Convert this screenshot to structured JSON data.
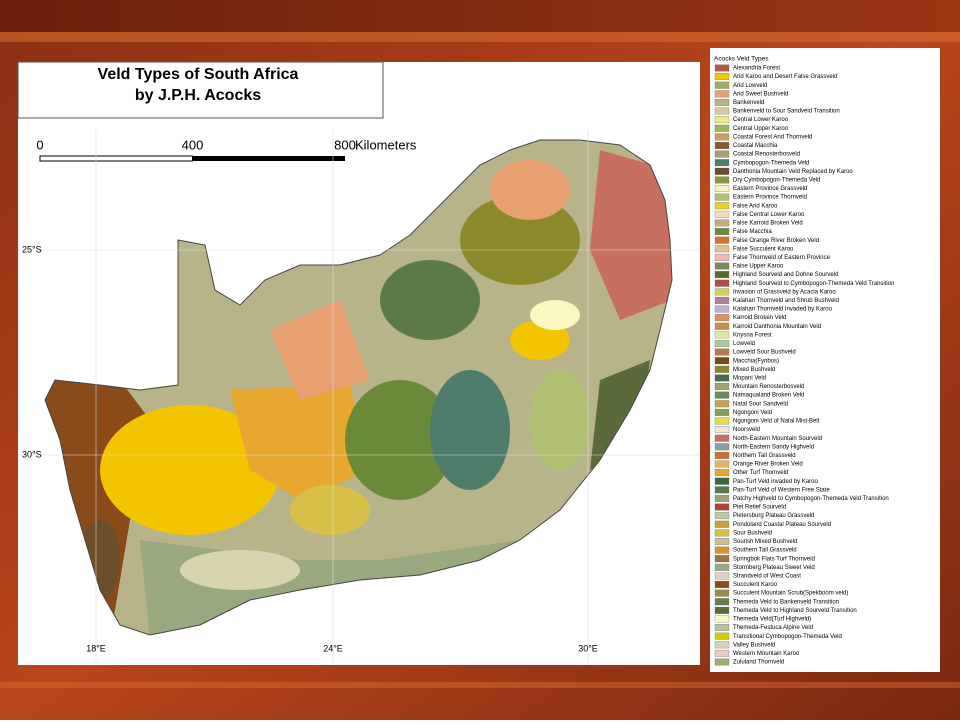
{
  "map": {
    "title": [
      "Veld Types of South Africa",
      "by J.P.H. Acocks"
    ],
    "scale": {
      "ticks": [
        0,
        400,
        800
      ],
      "unit": "Kilometers"
    },
    "latitudes": [
      "25°S",
      "30°S"
    ],
    "longitudes": [
      "18°E",
      "24°E",
      "30°E"
    ]
  },
  "legend": {
    "title": "Acocks Veld Types",
    "items": [
      {
        "label": "Alexandria Forest",
        "color": "#b5574e"
      },
      {
        "label": "Arid Karoo and Desert False Grassveld",
        "color": "#f2c500"
      },
      {
        "label": "Arid Lowveld",
        "color": "#a6a86a"
      },
      {
        "label": "Arid Sweet Bushveld",
        "color": "#e8a070"
      },
      {
        "label": "Bankenveld",
        "color": "#b8b48a"
      },
      {
        "label": "Bankenveld to Sour Sandveld Transition",
        "color": "#d9c9a0"
      },
      {
        "label": "Central Lower Karoo",
        "color": "#f0e68c"
      },
      {
        "label": "Central Upper Karoo",
        "color": "#9ab55a"
      },
      {
        "label": "Coastal Forest And Thornveld",
        "color": "#c8a060"
      },
      {
        "label": "Coastal Macchia",
        "color": "#8b5a2b"
      },
      {
        "label": "Coastal Renosterbosveld",
        "color": "#a8a070"
      },
      {
        "label": "Cymbopogon-Themeda Veld",
        "color": "#4e7c6a"
      },
      {
        "label": "Danthonia Mountain Veld Replaced by Karoo",
        "color": "#6b4e2a"
      },
      {
        "label": "Dry Cymbopogon-Themeda Veld",
        "color": "#8a9a3a"
      },
      {
        "label": "Eastern Province Grassveld",
        "color": "#f5f0c8"
      },
      {
        "label": "Eastern Province Thornveld",
        "color": "#b0c070"
      },
      {
        "label": "False Arid Karoo",
        "color": "#e8d030"
      },
      {
        "label": "False Central Lower Karoo",
        "color": "#f5dcc0"
      },
      {
        "label": "False Karroid Broken Veld",
        "color": "#c8a880"
      },
      {
        "label": "False Macchia",
        "color": "#6a8a3a"
      },
      {
        "label": "False Orange River Broken Veld",
        "color": "#d87030"
      },
      {
        "label": "False Succulent Karoo",
        "color": "#e0c090"
      },
      {
        "label": "False Thornveld of Eastern Province",
        "color": "#f0b8b0"
      },
      {
        "label": "False Upper Karoo",
        "color": "#7a8a50"
      },
      {
        "label": "Highland Sourveld and Dohne Sourveld",
        "color": "#5a6a2a"
      },
      {
        "label": "Highland Sourveld to Cymbopogon-Themeda Veld Transition",
        "color": "#b05040"
      },
      {
        "label": "Invasion of Grassveld by Acacia Karoo",
        "color": "#d4d060"
      },
      {
        "label": "Kalahari Thornveld and Shrub Bushveld",
        "color": "#b08098"
      },
      {
        "label": "Kalahari Thornveld Invaded by Karoo",
        "color": "#c0b0d0"
      },
      {
        "label": "Karroid Broken Veld",
        "color": "#e09060"
      },
      {
        "label": "Karroid Danthonia Mountain Veld",
        "color": "#c89050"
      },
      {
        "label": "Knysna Forest",
        "color": "#e0e8a0"
      },
      {
        "label": "Lowveld",
        "color": "#b0c8a0"
      },
      {
        "label": "Lowveld Sour Bushveld",
        "color": "#b87850"
      },
      {
        "label": "Macchia(Fynbos)",
        "color": "#7a4a1a"
      },
      {
        "label": "Mixed Bushveld",
        "color": "#8a8a2a"
      },
      {
        "label": "Mopani Veld",
        "color": "#4a6a4a"
      },
      {
        "label": "Mountain Renosterbosveld",
        "color": "#a0a070"
      },
      {
        "label": "Namaqualand Broken Veld",
        "color": "#6a8a5a"
      },
      {
        "label": "Natal Sour Sandveld",
        "color": "#c8a050"
      },
      {
        "label": "Ngongoni Veld",
        "color": "#8aa060"
      },
      {
        "label": "Ngongoni Veld of Natal Mist-Belt",
        "color": "#e8d848"
      },
      {
        "label": "Noorsveld",
        "color": "#f0e8d0"
      },
      {
        "label": "North-Eastern Mountain Sourveld",
        "color": "#c87060"
      },
      {
        "label": "North-Eastern Sandy Highveld",
        "color": "#8aa0a0"
      },
      {
        "label": "Northern Tall Grassveld",
        "color": "#d07030"
      },
      {
        "label": "Orange River Broken Veld",
        "color": "#e8b060"
      },
      {
        "label": "Other Turf Thornveld",
        "color": "#e8a830"
      },
      {
        "label": "Pan-Turf Veld invaded by Karoo",
        "color": "#3a6a3a"
      },
      {
        "label": "Pan-Turf Veld of Western Free State",
        "color": "#5a7a4a"
      },
      {
        "label": "Patchy Highveld to Cymbopogon-Themeda Veld Transition",
        "color": "#a0a080"
      },
      {
        "label": "Piet Retief Sourveld",
        "color": "#b04030"
      },
      {
        "label": "Pietersburg Plateau Grassveld",
        "color": "#c0c8a0"
      },
      {
        "label": "Pondoland Coastal Plateau Sourveld",
        "color": "#c8a040"
      },
      {
        "label": "Sour Bushveld",
        "color": "#d8c048"
      },
      {
        "label": "Sourish Mixed Bushveld",
        "color": "#c8c090"
      },
      {
        "label": "Southern Tall Grassveld",
        "color": "#d89030"
      },
      {
        "label": "Springbok Flats Turf Thornveld",
        "color": "#a07040"
      },
      {
        "label": "Stormberg Plateau Sweet Veld",
        "color": "#9aa880"
      },
      {
        "label": "Strandveld of West Coast",
        "color": "#e0d0c0"
      },
      {
        "label": "Succulent Karoo",
        "color": "#8a4a1a"
      },
      {
        "label": "Succulent Mountain Scrub(Spekboom veld)",
        "color": "#9a8a50"
      },
      {
        "label": "Themeda Veld to Bankenveld Transition",
        "color": "#6a7a50"
      },
      {
        "label": "Themeda Veld to Highland Sourveld Transition",
        "color": "#5a6a3a"
      },
      {
        "label": "Themeda Veld(Turf Highveld)",
        "color": "#f8f8c0"
      },
      {
        "label": "Themeda-Festuca Alpine Veld",
        "color": "#b8c0a0"
      },
      {
        "label": "Transitional Cymbopogon-Themeda Veld",
        "color": "#d8c800"
      },
      {
        "label": "Valley Bushveld",
        "color": "#d8d4b0"
      },
      {
        "label": "Western Mountain Karoo",
        "color": "#f0c8c8"
      },
      {
        "label": "Zululand Thornveld",
        "color": "#9ab070"
      }
    ]
  }
}
